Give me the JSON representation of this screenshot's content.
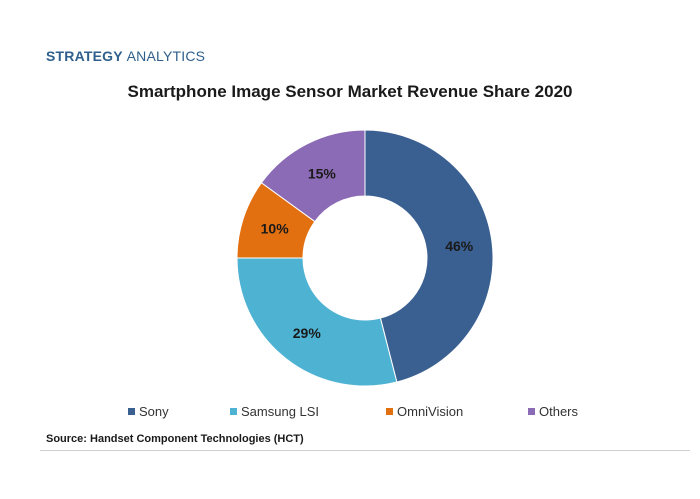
{
  "header": {
    "brand_bold": "STRATEGY",
    "brand_light": "ANALYTICS"
  },
  "chart_data": {
    "type": "pie",
    "donut": true,
    "title": "Smartphone Image Sensor Market Revenue Share 2020",
    "categories": [
      "Sony",
      "Samsung LSI",
      "OmniVision",
      "Others"
    ],
    "values": [
      46,
      29,
      10,
      15
    ],
    "labels": [
      "46%",
      "29%",
      "10%",
      "15%"
    ],
    "colors": [
      "#3a5f91",
      "#4eb3d3",
      "#e26f10",
      "#8b6bb5"
    ],
    "legend_position": "bottom",
    "source": "Source: Handset Component Technologies (HCT)"
  }
}
